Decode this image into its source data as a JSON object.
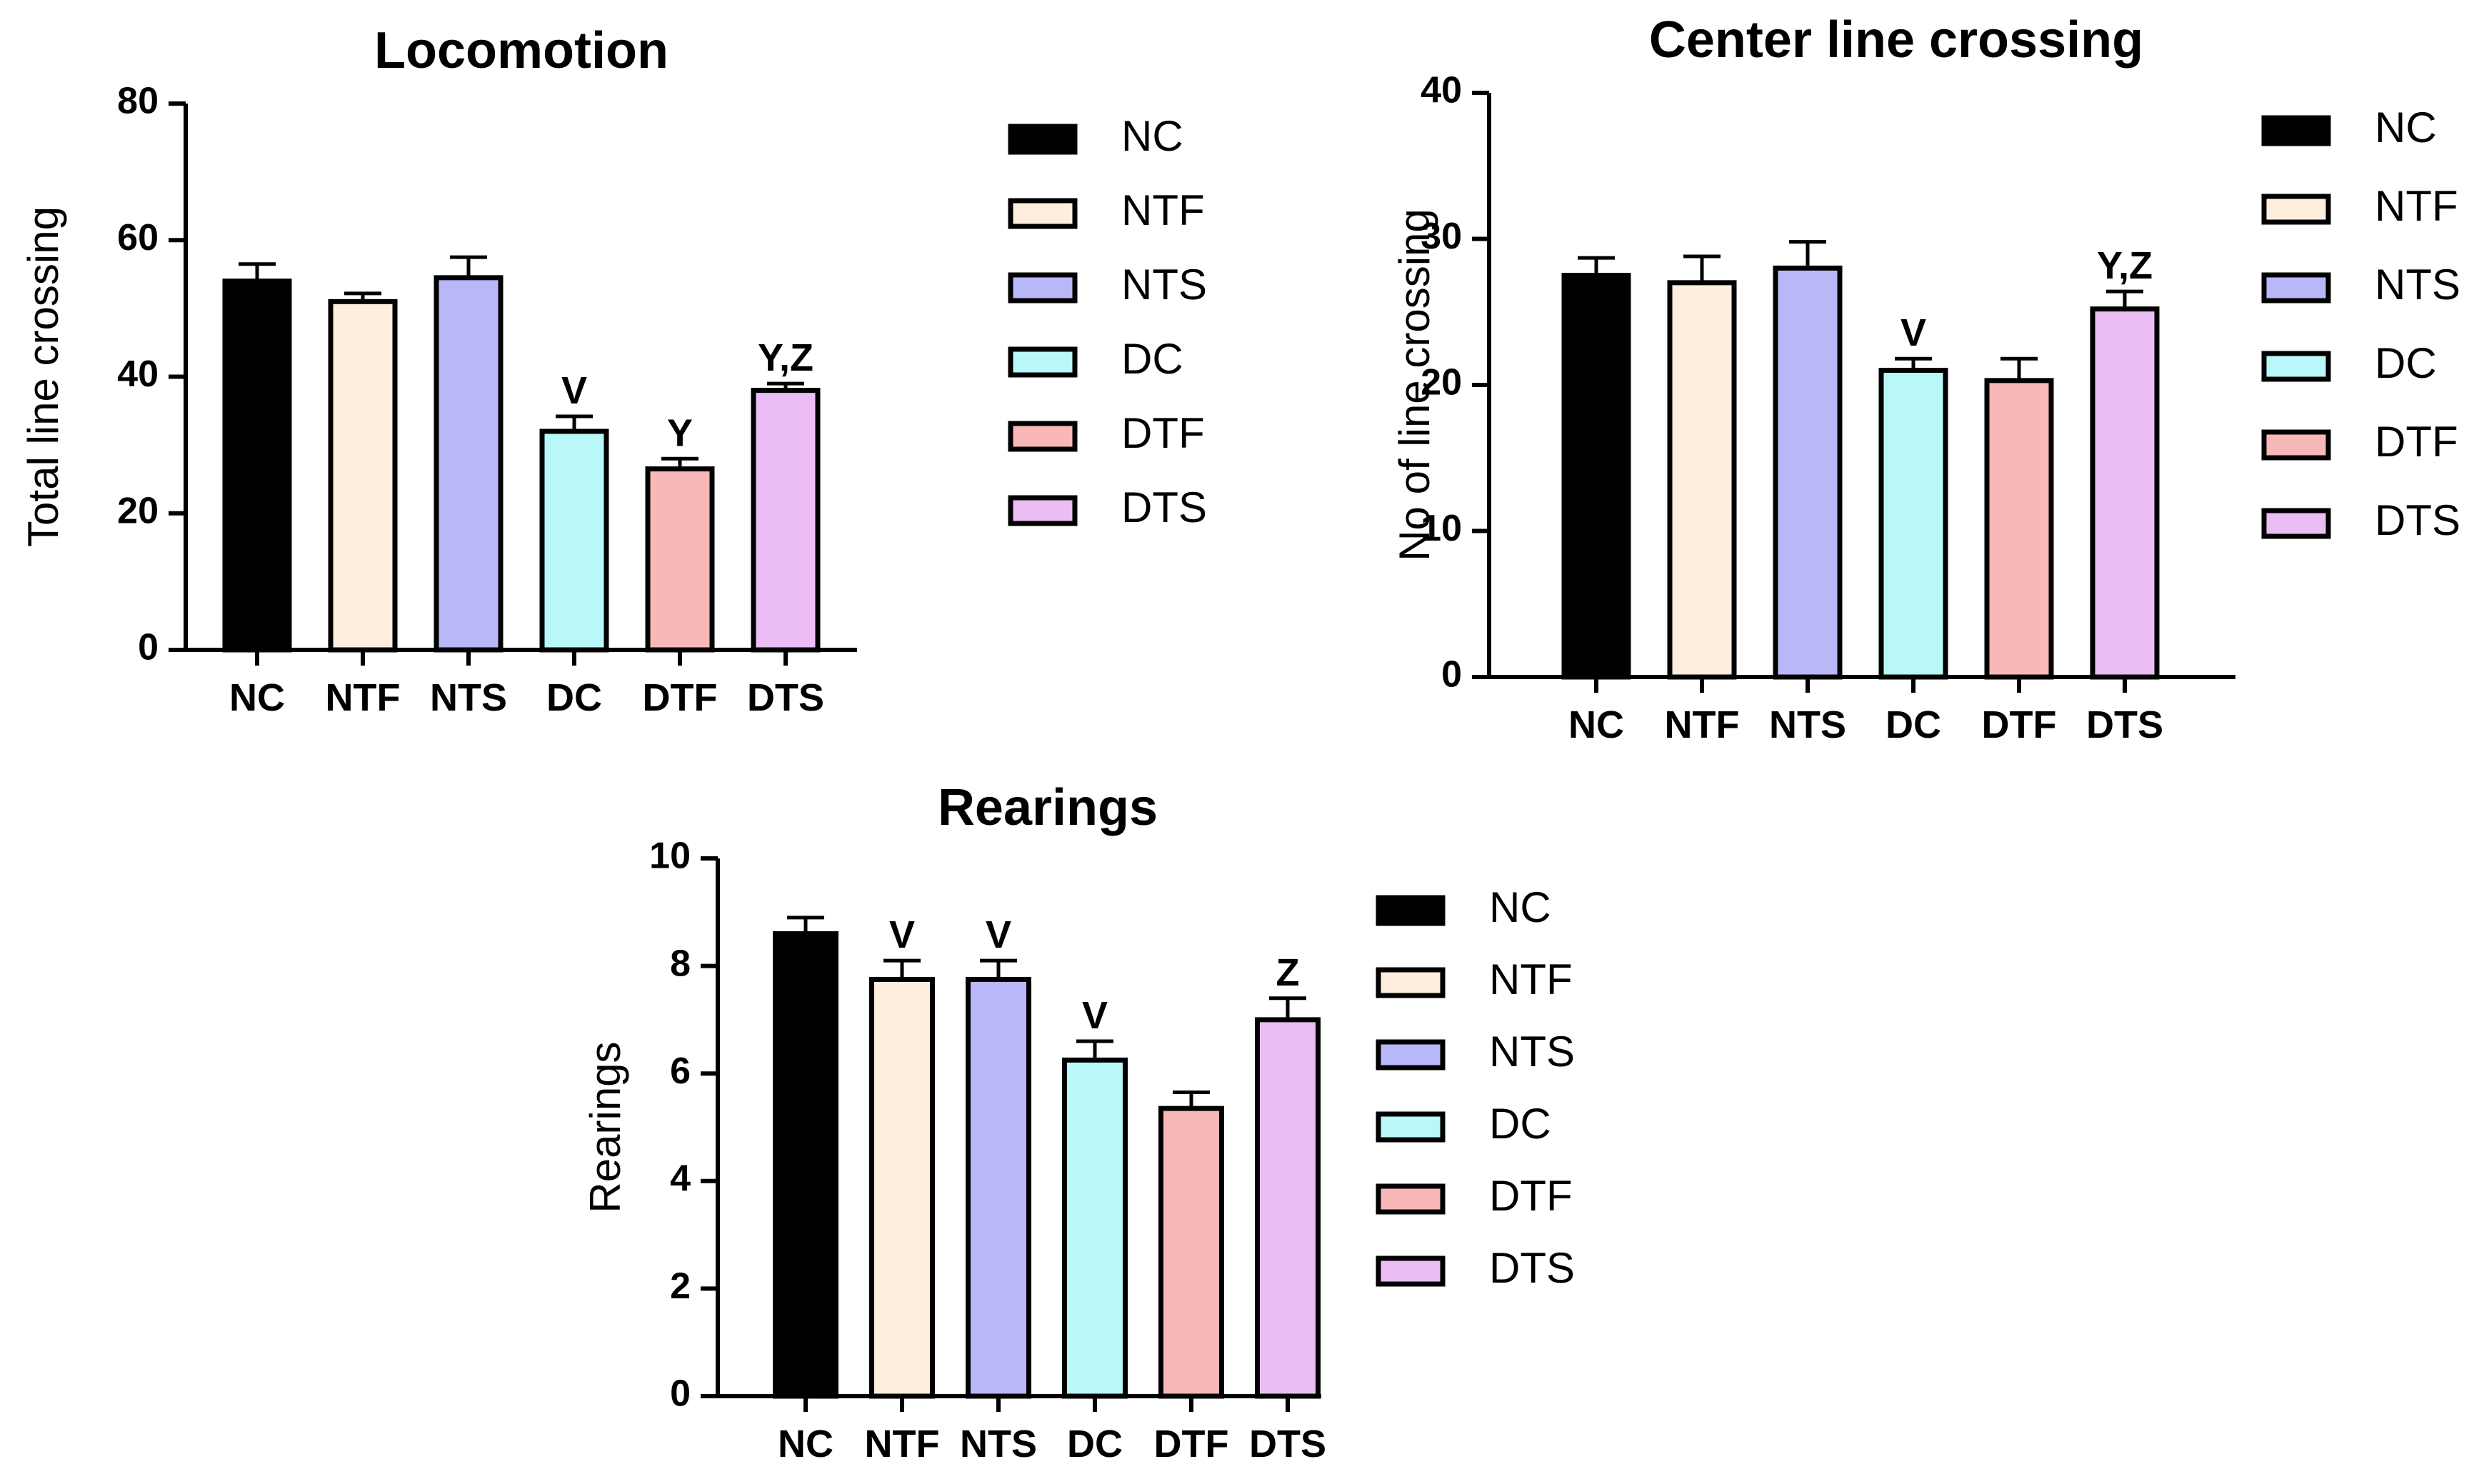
{
  "chart_data": [
    {
      "type": "bar",
      "title": "Locomotion",
      "xlabel": "",
      "ylabel": "Total line crossing",
      "ylim": [
        0,
        80
      ],
      "yticks": [
        "0",
        "20",
        "40",
        "60",
        "80"
      ],
      "categories": [
        "NC",
        "NTF",
        "NTS",
        "DC",
        "DTF",
        "DTS"
      ],
      "values": [
        54,
        51,
        54.5,
        32,
        26.5,
        38
      ],
      "errors": [
        2.5,
        1.2,
        3,
        2.2,
        1.5,
        1
      ],
      "annotations": [
        "",
        "",
        "",
        "V",
        "Y",
        "Y,Z"
      ],
      "legend": [
        "NC",
        "NTF",
        "NTS",
        "DC",
        "DTF",
        "DTS"
      ]
    },
    {
      "type": "bar",
      "title": "Center line crossing",
      "xlabel": "",
      "ylabel": "No of line crossing",
      "ylim": [
        0,
        40
      ],
      "yticks": [
        "0",
        "10",
        "20",
        "30",
        "40"
      ],
      "categories": [
        "NC",
        "NTF",
        "NTS",
        "DC",
        "DTF",
        "DTS"
      ],
      "values": [
        27.5,
        27,
        28,
        21,
        20.3,
        25.2
      ],
      "errors": [
        1.2,
        1.8,
        1.8,
        0.8,
        1.5,
        1.2
      ],
      "annotations": [
        "",
        "",
        "",
        "V",
        "",
        "Y,Z"
      ],
      "legend": [
        "NC",
        "NTF",
        "NTS",
        "DC",
        "DTF",
        "DTS"
      ]
    },
    {
      "type": "bar",
      "title": "Rearings",
      "xlabel": "",
      "ylabel": "Rearings",
      "ylim": [
        0,
        10
      ],
      "yticks": [
        "0",
        "2",
        "4",
        "6",
        "8",
        "10"
      ],
      "categories": [
        "NC",
        "NTF",
        "NTS",
        "DC",
        "DTF",
        "DTS"
      ],
      "values": [
        8.6,
        7.75,
        7.75,
        6.25,
        5.35,
        7
      ],
      "errors": [
        0.3,
        0.35,
        0.35,
        0.35,
        0.3,
        0.4
      ],
      "annotations": [
        "",
        "V",
        "V",
        "V",
        "",
        "Z"
      ],
      "legend": [
        "NC",
        "NTF",
        "NTS",
        "DC",
        "DTF",
        "DTS"
      ]
    }
  ],
  "colors": {
    "NC": "#000000",
    "NTF": "#fdeede",
    "NTS": "#b8b8f8",
    "DC": "#b8f8f8",
    "DTF": "#f8b8b8",
    "DTS": "#ecbcf4",
    "stroke": "#000000"
  }
}
